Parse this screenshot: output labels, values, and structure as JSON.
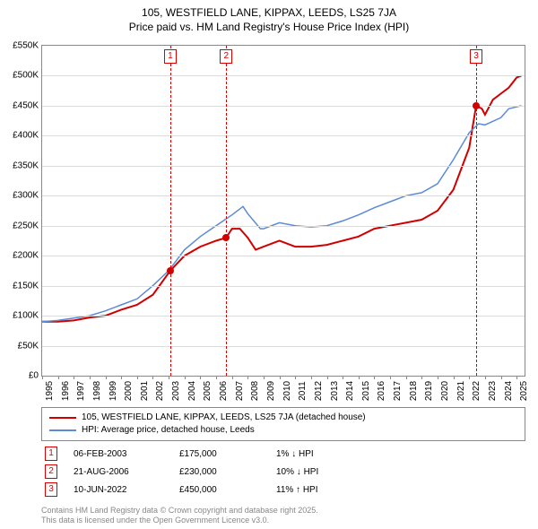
{
  "title": {
    "line1": "105, WESTFIELD LANE, KIPPAX, LEEDS, LS25 7JA",
    "line2": "Price paid vs. HM Land Registry's House Price Index (HPI)"
  },
  "chart": {
    "type": "line",
    "background_color": "#ffffff",
    "grid_color": "#dcdcdc",
    "border_color": "#888888",
    "x": {
      "min": 1995,
      "max": 2025.5,
      "ticks": [
        1995,
        1996,
        1997,
        1998,
        1999,
        2000,
        2001,
        2002,
        2003,
        2004,
        2005,
        2006,
        2007,
        2008,
        2009,
        2010,
        2011,
        2012,
        2013,
        2014,
        2015,
        2016,
        2017,
        2018,
        2019,
        2020,
        2021,
        2022,
        2023,
        2024,
        2025
      ],
      "label_fontsize": 10
    },
    "y": {
      "min": 0,
      "max": 550000,
      "ticks": [
        {
          "v": 0,
          "label": "£0"
        },
        {
          "v": 50000,
          "label": "£50K"
        },
        {
          "v": 100000,
          "label": "£100K"
        },
        {
          "v": 150000,
          "label": "£150K"
        },
        {
          "v": 200000,
          "label": "£200K"
        },
        {
          "v": 250000,
          "label": "£250K"
        },
        {
          "v": 300000,
          "label": "£300K"
        },
        {
          "v": 350000,
          "label": "£350K"
        },
        {
          "v": 400000,
          "label": "£400K"
        },
        {
          "v": 450000,
          "label": "£450K"
        },
        {
          "v": 500000,
          "label": "£500K"
        },
        {
          "v": 550000,
          "label": "£550K"
        }
      ],
      "label_fontsize": 10
    },
    "series": [
      {
        "name": "property",
        "label": "105, WESTFIELD LANE, KIPPAX, LEEDS, LS25 7JA (detached house)",
        "color": "#d00000",
        "line_width": 2,
        "data": [
          [
            1995,
            90000
          ],
          [
            1996,
            90000
          ],
          [
            1997,
            92000
          ],
          [
            1998,
            97000
          ],
          [
            1999,
            100000
          ],
          [
            2000,
            110000
          ],
          [
            2001,
            118000
          ],
          [
            2002,
            135000
          ],
          [
            2003.1,
            175000
          ],
          [
            2004,
            200000
          ],
          [
            2005,
            215000
          ],
          [
            2006,
            225000
          ],
          [
            2006.64,
            230000
          ],
          [
            2007,
            245000
          ],
          [
            2007.5,
            245000
          ],
          [
            2008,
            230000
          ],
          [
            2008.5,
            210000
          ],
          [
            2009,
            215000
          ],
          [
            2010,
            225000
          ],
          [
            2011,
            215000
          ],
          [
            2012,
            215000
          ],
          [
            2013,
            218000
          ],
          [
            2014,
            225000
          ],
          [
            2015,
            232000
          ],
          [
            2016,
            245000
          ],
          [
            2017,
            250000
          ],
          [
            2018,
            255000
          ],
          [
            2019,
            260000
          ],
          [
            2020,
            275000
          ],
          [
            2021,
            310000
          ],
          [
            2022,
            380000
          ],
          [
            2022.44,
            450000
          ],
          [
            2022.8,
            445000
          ],
          [
            2023,
            435000
          ],
          [
            2023.5,
            460000
          ],
          [
            2024,
            470000
          ],
          [
            2024.5,
            480000
          ],
          [
            2025,
            497000
          ],
          [
            2025.3,
            500000
          ]
        ]
      },
      {
        "name": "hpi",
        "label": "HPI: Average price, detached house, Leeds",
        "color": "#5b8bd4",
        "line_width": 1.5,
        "data": [
          [
            1995,
            90000
          ],
          [
            1996,
            92000
          ],
          [
            1997,
            96000
          ],
          [
            1998,
            100000
          ],
          [
            1999,
            108000
          ],
          [
            2000,
            118000
          ],
          [
            2001,
            128000
          ],
          [
            2002,
            150000
          ],
          [
            2003,
            175000
          ],
          [
            2004,
            210000
          ],
          [
            2005,
            232000
          ],
          [
            2006,
            250000
          ],
          [
            2007,
            268000
          ],
          [
            2007.7,
            282000
          ],
          [
            2008,
            270000
          ],
          [
            2008.8,
            245000
          ],
          [
            2009,
            245000
          ],
          [
            2010,
            255000
          ],
          [
            2011,
            250000
          ],
          [
            2012,
            248000
          ],
          [
            2013,
            250000
          ],
          [
            2014,
            258000
          ],
          [
            2015,
            268000
          ],
          [
            2016,
            280000
          ],
          [
            2017,
            290000
          ],
          [
            2018,
            300000
          ],
          [
            2019,
            305000
          ],
          [
            2020,
            320000
          ],
          [
            2021,
            360000
          ],
          [
            2022,
            405000
          ],
          [
            2022.6,
            420000
          ],
          [
            2023,
            418000
          ],
          [
            2024,
            430000
          ],
          [
            2024.5,
            445000
          ],
          [
            2025,
            448000
          ],
          [
            2025.3,
            450000
          ]
        ]
      }
    ],
    "markers": [
      {
        "n": "1",
        "x": 2003.1
      },
      {
        "n": "2",
        "x": 2006.64
      },
      {
        "n": "3",
        "x": 2022.44
      }
    ],
    "sale_points": [
      {
        "x": 2003.1,
        "y": 175000
      },
      {
        "x": 2006.64,
        "y": 230000
      },
      {
        "x": 2022.44,
        "y": 450000
      }
    ]
  },
  "legend": {
    "items": [
      "property",
      "hpi"
    ]
  },
  "sales": [
    {
      "n": "1",
      "date": "06-FEB-2003",
      "price": "£175,000",
      "diff": "1% ↓ HPI"
    },
    {
      "n": "2",
      "date": "21-AUG-2006",
      "price": "£230,000",
      "diff": "10% ↓ HPI"
    },
    {
      "n": "3",
      "date": "10-JUN-2022",
      "price": "£450,000",
      "diff": "11% ↑ HPI"
    }
  ],
  "footer": {
    "line1": "Contains HM Land Registry data © Crown copyright and database right 2025.",
    "line2": "This data is licensed under the Open Government Licence v3.0."
  }
}
